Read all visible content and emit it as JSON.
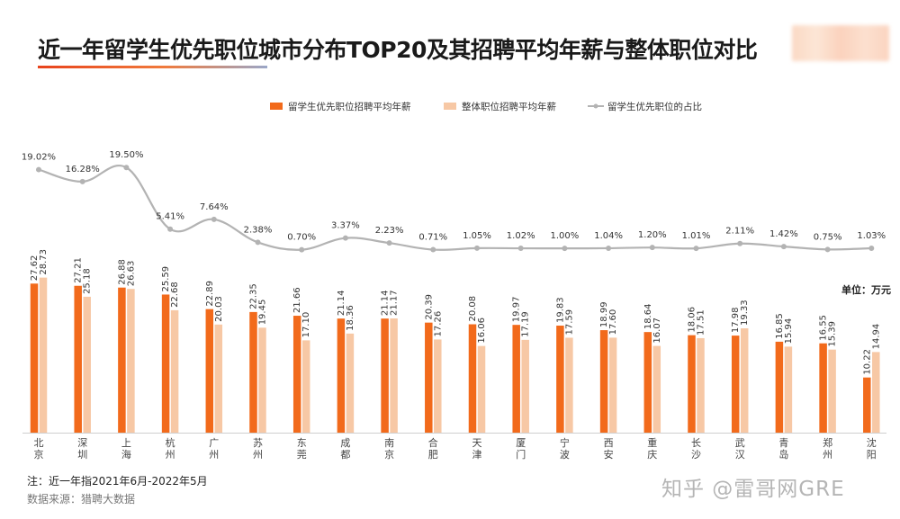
{
  "title": "近一年留学生优先职位城市分布TOP20及其招聘平均年薪与整体职位对比",
  "note": "注：近一年指2021年6月-2022年5月",
  "source": "数据来源：猎聘大数据",
  "watermark": "知乎 @雷哥网GRE",
  "unit_label": "单位：万元",
  "colors": {
    "priority_bar": "#f26a1b",
    "overall_bar": "#f7c8a5",
    "share_line": "#b3b3b3",
    "title_accent": "#e8431c"
  },
  "chart_data": {
    "type": "bar",
    "title": "近一年留学生优先职位城市分布TOP20及其招聘平均年薪与整体职位对比",
    "categories": [
      "北京",
      "深圳",
      "上海",
      "杭州",
      "广州",
      "苏州",
      "东莞",
      "成都",
      "南京",
      "合肥",
      "天津",
      "厦门",
      "宁波",
      "西安",
      "重庆",
      "长沙",
      "武汉",
      "青岛",
      "郑州",
      "沈阳"
    ],
    "category_labels": [
      [
        "北",
        "京"
      ],
      [
        "深",
        "圳"
      ],
      [
        "上",
        "海"
      ],
      [
        "杭",
        "州"
      ],
      [
        "广",
        "州"
      ],
      [
        "苏",
        "州"
      ],
      [
        "东",
        "莞"
      ],
      [
        "成",
        "都"
      ],
      [
        "南",
        "京"
      ],
      [
        "合",
        "肥"
      ],
      [
        "天",
        "津"
      ],
      [
        "厦",
        "门"
      ],
      [
        "宁",
        "波"
      ],
      [
        "西",
        "安"
      ],
      [
        "重",
        "庆"
      ],
      [
        "长",
        "沙"
      ],
      [
        "武",
        "汉"
      ],
      [
        "青",
        "岛"
      ],
      [
        "郑",
        "州"
      ],
      [
        "沈",
        "阳"
      ]
    ],
    "series": [
      {
        "name": "留学生优先职位招聘平均年薪",
        "type": "bar",
        "color": "#f26a1b",
        "values": [
          27.62,
          27.21,
          26.88,
          25.59,
          22.89,
          22.35,
          21.66,
          21.14,
          21.14,
          20.39,
          20.08,
          19.97,
          19.83,
          18.99,
          18.64,
          18.06,
          17.98,
          16.85,
          16.55,
          10.22
        ],
        "labels": [
          "27.62",
          "27.21",
          "26.88",
          "25.59",
          "22.89",
          "22.35",
          "21.66",
          "21.14",
          "21.14",
          "20.39",
          "20.08",
          "19.97",
          "19.83",
          "18.99",
          "18.64",
          "18.06",
          "17.98",
          "16.85",
          "16.55",
          "10.22"
        ]
      },
      {
        "name": "整体职位招聘平均年薪",
        "type": "bar",
        "color": "#f7c8a5",
        "values": [
          28.73,
          25.18,
          26.63,
          22.68,
          20.03,
          19.45,
          17.1,
          18.36,
          21.17,
          17.26,
          16.06,
          17.19,
          17.59,
          17.6,
          16.07,
          17.51,
          19.33,
          15.94,
          15.39,
          14.94
        ],
        "labels": [
          "28.73",
          "25.18",
          "26.63",
          "22.68",
          "20.03",
          "19.45",
          "17.10",
          "18.36",
          "21.17",
          "17.26",
          "16.06",
          "17.19",
          "17.59",
          "17.60",
          "16.07",
          "17.51",
          "19.33",
          "15.94",
          "15.39",
          "14.94"
        ]
      },
      {
        "name": "留学生优先职位的占比",
        "type": "line",
        "color": "#b3b3b3",
        "values": [
          19.02,
          16.28,
          19.5,
          5.41,
          7.64,
          2.38,
          0.7,
          3.37,
          2.23,
          0.71,
          1.05,
          1.02,
          1.0,
          1.04,
          1.2,
          1.01,
          2.11,
          1.42,
          0.75,
          1.03
        ],
        "labels": [
          "19.02%",
          "16.28%",
          "19.50%",
          "5.41%",
          "7.64%",
          "2.38%",
          "0.70%",
          "3.37%",
          "2.23%",
          "0.71%",
          "1.05%",
          "1.02%",
          "1.00%",
          "1.04%",
          "1.20%",
          "1.01%",
          "2.11%",
          "1.42%",
          "0.75%",
          "1.03%"
        ]
      }
    ],
    "legend": [
      "留学生优先职位招聘平均年薪",
      "整体职位招聘平均年薪",
      "留学生优先职位的占比"
    ],
    "legend_position": "top-center",
    "ylabel": "",
    "xlabel": "",
    "ylim": [
      0,
      30
    ],
    "y2lim": [
      0,
      20
    ],
    "grid": false
  }
}
